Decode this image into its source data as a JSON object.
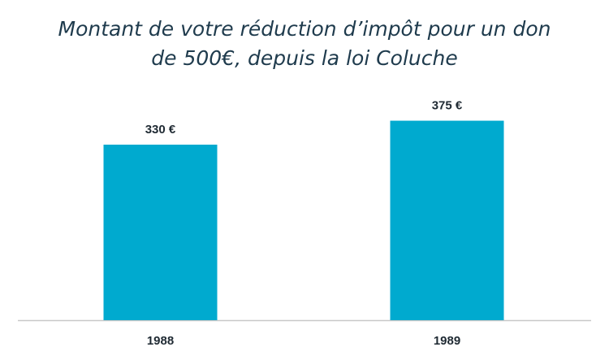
{
  "chart_data": {
    "type": "bar",
    "title_lines": [
      "Montant de votre réduction d’impôt pour un don",
      "de 500€, depuis la loi Coluche"
    ],
    "categories": [
      "1988",
      "1989"
    ],
    "values": [
      330,
      375
    ],
    "data_labels": [
      "330 €",
      "375 €"
    ],
    "xlabel": "",
    "ylabel": "",
    "ylim": [
      0,
      400
    ],
    "grid": false,
    "legend": "none",
    "bar_color": "#00AACF",
    "axis_color": "#c8c8c8"
  }
}
